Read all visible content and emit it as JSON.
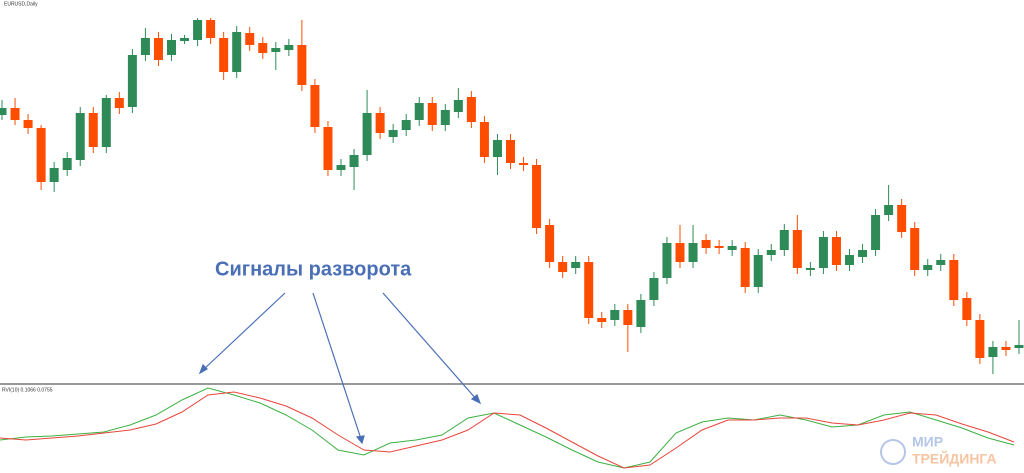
{
  "chart_data": [
    {
      "type": "candlestick",
      "title": "EURUSD,Daily",
      "annotation": "Сигналы разворота",
      "up_color": "#2e8b57",
      "down_color": "#ff4d00",
      "ylim": [
        17,
        400
      ],
      "open": [
        285,
        292,
        280,
        272,
        218,
        230,
        240,
        287,
        253,
        302,
        293,
        345,
        362,
        345,
        359,
        360,
        380,
        362,
        328,
        367,
        357,
        348,
        350,
        355,
        315,
        273,
        230,
        233,
        245,
        287,
        263,
        270,
        280,
        297,
        275,
        288,
        303,
        278,
        243,
        260,
        237,
        235,
        175,
        138,
        132,
        138,
        82,
        80,
        90,
        73,
        100,
        122,
        157,
        138,
        160,
        154,
        150,
        152,
        113,
        145,
        150,
        170,
        130,
        132,
        163,
        135,
        143,
        150,
        185,
        195,
        172,
        130,
        135,
        140,
        102,
        80,
        43,
        53,
        52
      ],
      "high": [
        300,
        302,
        286,
        275,
        238,
        248,
        293,
        293,
        305,
        308,
        351,
        372,
        368,
        366,
        365,
        382,
        382,
        368,
        374,
        373,
        363,
        358,
        361,
        380,
        321,
        279,
        241,
        251,
        310,
        293,
        276,
        286,
        303,
        303,
        296,
        312,
        309,
        284,
        266,
        266,
        243,
        241,
        181,
        144,
        144,
        144,
        88,
        96,
        96,
        106,
        128,
        163,
        175,
        175,
        166,
        160,
        160,
        158,
        151,
        156,
        176,
        185,
        138,
        169,
        169,
        151,
        156,
        191,
        215,
        201,
        178,
        141,
        146,
        146,
        108,
        86,
        59,
        59,
        80
      ],
      "low": [
        280,
        275,
        266,
        210,
        208,
        224,
        234,
        247,
        247,
        286,
        287,
        339,
        334,
        339,
        356,
        354,
        356,
        320,
        322,
        349,
        341,
        330,
        344,
        309,
        267,
        224,
        224,
        210,
        239,
        261,
        257,
        264,
        274,
        269,
        269,
        282,
        272,
        237,
        225,
        231,
        229,
        166,
        132,
        122,
        126,
        76,
        72,
        74,
        48,
        67,
        94,
        116,
        132,
        132,
        146,
        146,
        144,
        107,
        107,
        139,
        144,
        126,
        124,
        126,
        129,
        129,
        137,
        144,
        179,
        162,
        124,
        124,
        129,
        94,
        74,
        36,
        26,
        44,
        46
      ],
      "close": [
        292,
        280,
        272,
        218,
        232,
        242,
        287,
        253,
        302,
        292,
        345,
        362,
        340,
        360,
        362,
        380,
        362,
        328,
        368,
        355,
        347,
        352,
        355,
        315,
        273,
        230,
        235,
        245,
        287,
        267,
        270,
        280,
        297,
        275,
        290,
        300,
        278,
        243,
        260,
        237,
        235,
        172,
        138,
        128,
        138,
        82,
        78,
        90,
        75,
        100,
        122,
        157,
        138,
        157,
        152,
        152,
        154,
        113,
        145,
        150,
        170,
        132,
        132,
        163,
        135,
        145,
        150,
        185,
        195,
        168,
        130,
        135,
        140,
        100,
        80,
        42,
        53,
        50,
        55
      ]
    },
    {
      "type": "line",
      "title": "RVI(10) 0.1066 0.0755",
      "ylim": [
        0,
        86
      ],
      "series": [
        {
          "color": "#3cb043",
          "values": [
            33,
            36,
            37,
            39,
            41,
            48,
            58,
            73,
            85,
            78,
            70,
            58,
            43,
            23,
            18,
            30,
            33,
            38,
            55,
            60,
            48,
            36,
            23,
            11,
            5,
            11,
            40,
            51,
            55,
            53,
            58,
            53,
            46,
            48,
            58,
            61,
            53,
            45,
            35,
            28
          ]
        },
        {
          "color": "#e8453c",
          "values": [
            35,
            33,
            35,
            37,
            40,
            43,
            49,
            61,
            78,
            81,
            75,
            67,
            55,
            38,
            23,
            21,
            27,
            33,
            43,
            60,
            58,
            45,
            31,
            17,
            5,
            8,
            25,
            43,
            53,
            53,
            55,
            55,
            50,
            48,
            53,
            60,
            58,
            49,
            41,
            31
          ]
        }
      ]
    }
  ],
  "watermark": {
    "line1": "МИР",
    "line2": "ТРЕЙДИНГА"
  }
}
